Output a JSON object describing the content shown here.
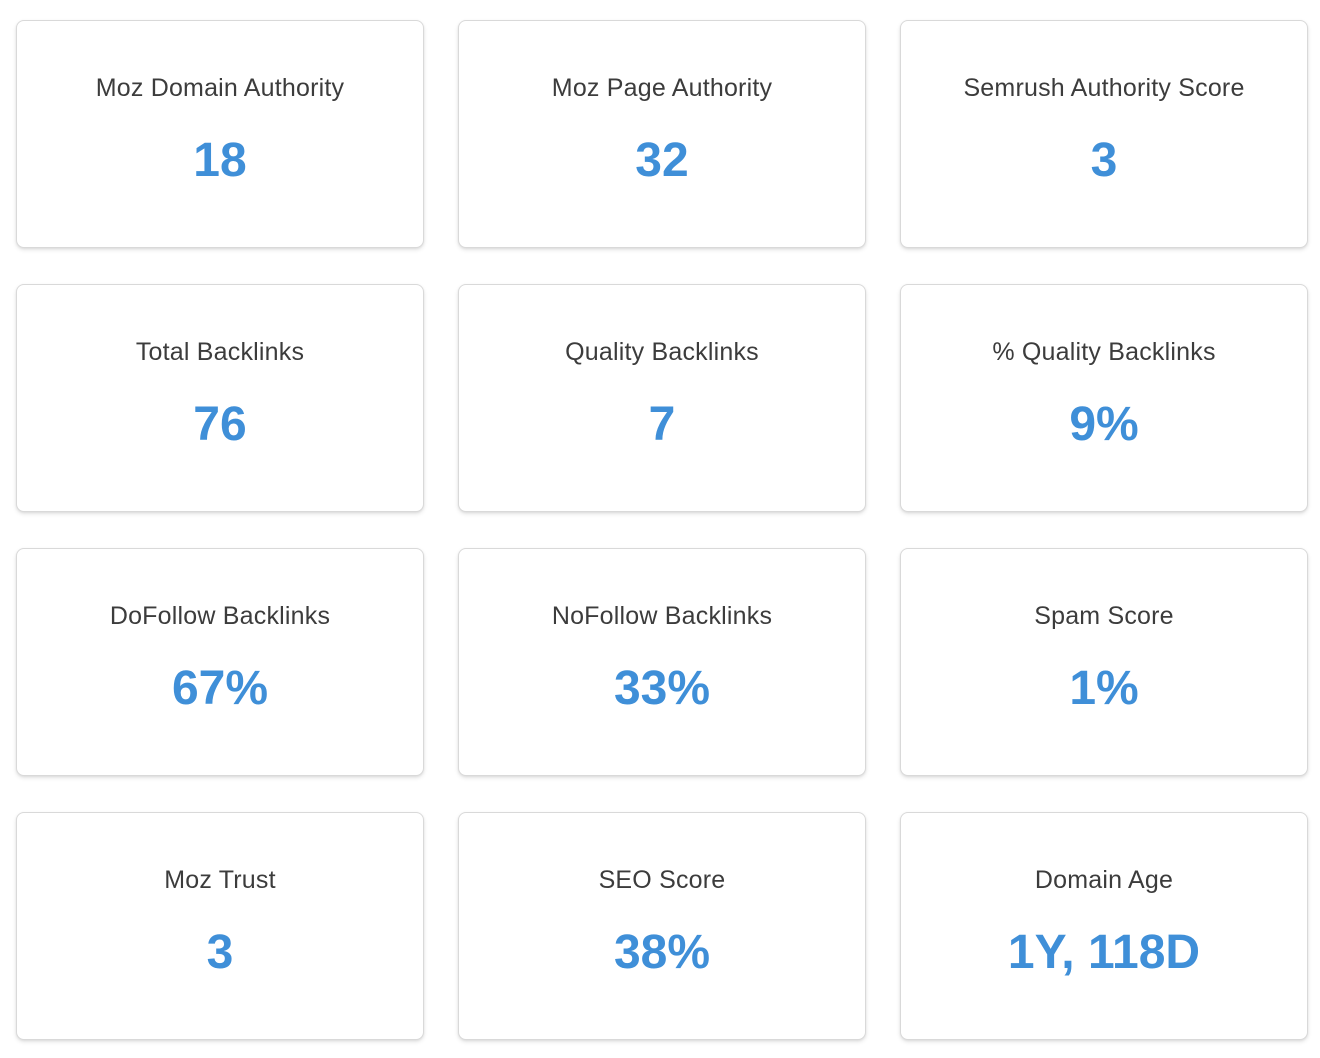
{
  "accent_color": "#3f8fd8",
  "metrics": [
    {
      "label": "Moz Domain Authority",
      "value": "18"
    },
    {
      "label": "Moz Page Authority",
      "value": "32"
    },
    {
      "label": "Semrush Authority Score",
      "value": "3"
    },
    {
      "label": "Total Backlinks",
      "value": "76"
    },
    {
      "label": "Quality Backlinks",
      "value": "7"
    },
    {
      "label": "% Quality Backlinks",
      "value": "9%"
    },
    {
      "label": "DoFollow Backlinks",
      "value": "67%"
    },
    {
      "label": "NoFollow Backlinks",
      "value": "33%"
    },
    {
      "label": "Spam Score",
      "value": "1%"
    },
    {
      "label": "Moz Trust",
      "value": "3"
    },
    {
      "label": "SEO Score",
      "value": "38%"
    },
    {
      "label": "Domain Age",
      "value": "1Y, 118D"
    }
  ]
}
